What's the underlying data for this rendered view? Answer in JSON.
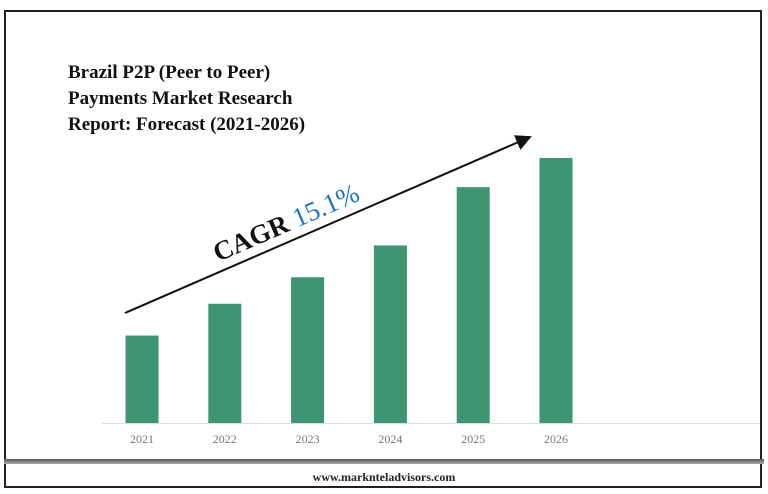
{
  "title_lines": [
    "Brazil P2P (Peer to Peer)",
    "Payments Market Research",
    "Report: Forecast (2021-2026)"
  ],
  "footer": "www.marknteladvisors.com",
  "chart_data": {
    "type": "bar",
    "title": "Brazil P2P (Peer to Peer) Payments Market Research Report: Forecast (2021-2026)",
    "categories": [
      "2021",
      "2022",
      "2023",
      "2024",
      "2025",
      "2026"
    ],
    "values": [
      33,
      45,
      55,
      67,
      89,
      100
    ],
    "ylim": [
      0,
      100
    ],
    "y_axis_shown": false,
    "grid": false,
    "bar_color": "#3d9671",
    "annotation": {
      "label": "CAGR",
      "value": "15.1%",
      "value_color": "#1a73c8",
      "arrow": "up-right trend arrow"
    }
  }
}
